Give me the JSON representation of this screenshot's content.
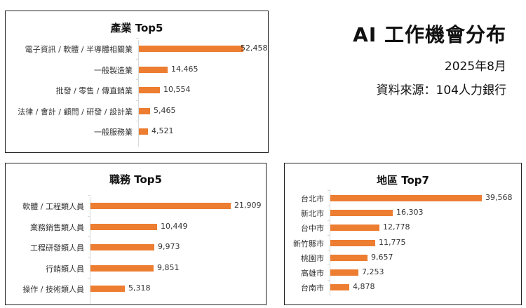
{
  "header": {
    "title": "AI 工作機會分布",
    "date": "2025年8月",
    "source": "資料來源：104人力銀行"
  },
  "colors": {
    "bar": "#ED7D31",
    "border": "#222222",
    "axis": "#D9D9D9"
  },
  "chart_data": [
    {
      "type": "bar",
      "orientation": "horizontal",
      "title": "產業 Top5",
      "categories": [
        "電子資訊 / 軟體 / 半導體相關業",
        "一般製造業",
        "批發 / 零售 / 傳直銷業",
        "法律 / 會計 / 顧問 / 研發 / 設計業",
        "一般服務業"
      ],
      "values": [
        52458,
        14465,
        10554,
        5465,
        4521
      ],
      "labels": [
        "52,458",
        "14,465",
        "10,554",
        "5,465",
        "4,521"
      ],
      "xlabel": "",
      "ylabel": "",
      "grid": false,
      "legend": "none"
    },
    {
      "type": "bar",
      "orientation": "horizontal",
      "title": "職務 Top5",
      "categories": [
        "軟體 / 工程類人員",
        "業務銷售類人員",
        "工程研發類人員",
        "行銷類人員",
        "操作 / 技術類人員"
      ],
      "values": [
        21909,
        10449,
        9973,
        9851,
        5318
      ],
      "labels": [
        "21,909",
        "10,449",
        "9,973",
        "9,851",
        "5,318"
      ],
      "xlabel": "",
      "ylabel": "",
      "grid": false,
      "legend": "none"
    },
    {
      "type": "bar",
      "orientation": "horizontal",
      "title": "地區 Top7",
      "categories": [
        "台北市",
        "新北市",
        "台中市",
        "新竹縣市",
        "桃園市",
        "高雄市",
        "台南市"
      ],
      "values": [
        39568,
        16303,
        12778,
        11775,
        9657,
        7253,
        4878
      ],
      "labels": [
        "39,568",
        "16,303",
        "12,778",
        "11,775",
        "9,657",
        "7,253",
        "4,878"
      ],
      "xlabel": "",
      "ylabel": "",
      "grid": false,
      "legend": "none"
    }
  ]
}
